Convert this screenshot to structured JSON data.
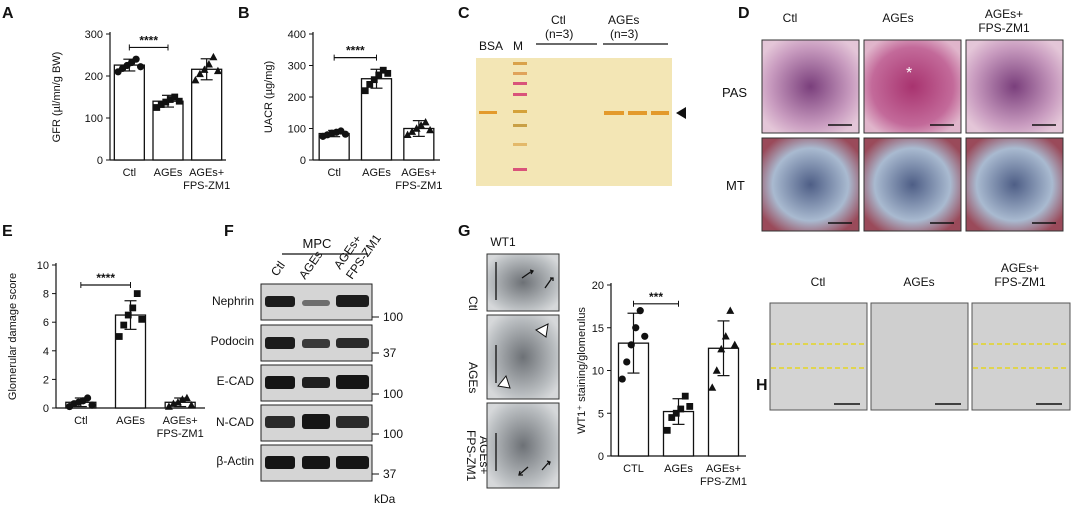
{
  "panels": {
    "A": {
      "letter": "A"
    },
    "B": {
      "letter": "B"
    },
    "C": {
      "letter": "C",
      "lanes": [
        "BSA",
        "M"
      ],
      "groups": [
        {
          "name": "Ctl",
          "n": "(n=3)"
        },
        {
          "name": "AGEs",
          "n": "(n=3)"
        }
      ]
    },
    "D": {
      "letter": "D",
      "cols": [
        "Ctl",
        "AGEs",
        "AGEs+",
        "FPS-ZM1"
      ],
      "rows": [
        "PAS",
        "MT"
      ]
    },
    "E": {
      "letter": "E"
    },
    "F": {
      "letter": "F",
      "group": "MPC",
      "lanes": [
        "Ctl",
        "AGEs",
        "AGEs+",
        "FPS-ZM1"
      ],
      "proteins": [
        "Nephrin",
        "Podocin",
        "E-CAD",
        "N-CAD",
        "β-Actin"
      ],
      "kda": [
        "100",
        "37",
        "100",
        "100",
        "37"
      ],
      "kda_unit": "kDa"
    },
    "G": {
      "letter": "G",
      "stain": "WT1",
      "rows": [
        "Ctl",
        "AGEs",
        "AGEs+",
        "FPS-ZM1"
      ]
    },
    "H": {
      "letter": "H",
      "cols": [
        "Ctl",
        "AGEs",
        "AGEs+",
        "FPS-ZM1"
      ]
    }
  },
  "chart_data": [
    {
      "id": "A",
      "type": "bar",
      "categories": [
        [
          "Ctl"
        ],
        [
          "AGEs"
        ],
        [
          "AGEs+",
          "FPS-ZM1"
        ]
      ],
      "values": [
        226,
        140,
        216
      ],
      "errors": [
        14,
        14,
        25
      ],
      "points": [
        [
          210,
          218,
          225,
          232,
          240,
          222
        ],
        [
          125,
          132,
          138,
          144,
          150,
          140
        ],
        [
          190,
          205,
          215,
          228,
          245,
          212
        ]
      ],
      "markers": [
        "circle",
        "square",
        "triangle"
      ],
      "ylabel": "GFR (µl/mn/g BW)",
      "ylim": [
        0,
        300
      ],
      "yticks": [
        "0",
        "100",
        "200",
        "300"
      ],
      "sig": {
        "from": 0,
        "to": 1,
        "label": "****",
        "y": 268
      }
    },
    {
      "id": "B",
      "type": "bar",
      "categories": [
        [
          "Ctl"
        ],
        [
          "AGEs"
        ],
        [
          "AGEs+",
          "FPS-ZM1"
        ]
      ],
      "values": [
        84,
        258,
        100
      ],
      "errors": [
        10,
        30,
        25
      ],
      "points": [
        [
          75,
          80,
          85,
          88,
          92,
          82
        ],
        [
          220,
          240,
          255,
          270,
          285,
          275
        ],
        [
          80,
          90,
          100,
          110,
          120,
          95
        ]
      ],
      "markers": [
        "circle",
        "square",
        "triangle"
      ],
      "ylabel": "UACR (µg/mg)",
      "ylim": [
        0,
        400
      ],
      "yticks": [
        "0",
        "100",
        "200",
        "300",
        "400"
      ],
      "sig": {
        "from": 0,
        "to": 1,
        "label": "****",
        "y": 325
      }
    },
    {
      "id": "E",
      "type": "bar",
      "categories": [
        [
          "Ctl"
        ],
        [
          "AGEs"
        ],
        [
          "AGEs+",
          "FPS-ZM1"
        ]
      ],
      "values": [
        0.4,
        6.5,
        0.4
      ],
      "errors": [
        0.3,
        1.0,
        0.3
      ],
      "points": [
        [
          0.1,
          0.3,
          0.4,
          0.5,
          0.7,
          0.2
        ],
        [
          5.0,
          5.8,
          6.5,
          7.0,
          8.0,
          6.2
        ],
        [
          0.1,
          0.3,
          0.4,
          0.6,
          0.7,
          0.2
        ]
      ],
      "markers": [
        "circle",
        "square",
        "triangle"
      ],
      "ylabel": "Glomerular damage score",
      "ylim": [
        0,
        10
      ],
      "yticks": [
        "0",
        "2",
        "4",
        "6",
        "8",
        "10"
      ],
      "sig": {
        "from": 0,
        "to": 1,
        "label": "****",
        "y": 8.6
      }
    },
    {
      "id": "G",
      "type": "bar",
      "categories": [
        [
          "CTL"
        ],
        [
          "AGEs"
        ],
        [
          "AGEs+",
          "FPS-ZM1"
        ]
      ],
      "values": [
        13.2,
        5.2,
        12.6
      ],
      "errors": [
        3.5,
        1.5,
        3.2
      ],
      "points": [
        [
          9,
          11,
          13,
          15,
          17,
          14
        ],
        [
          3,
          4.5,
          5,
          5.5,
          7,
          5.8
        ],
        [
          8,
          10,
          12.5,
          14,
          17,
          13
        ]
      ],
      "markers": [
        "circle",
        "square",
        "triangle"
      ],
      "ylabel": "WT1⁺ staining/glomerulus",
      "ylim": [
        0,
        20
      ],
      "yticks": [
        "0",
        "5",
        "10",
        "15",
        "20"
      ],
      "sig": {
        "from": 0,
        "to": 1,
        "label": "***",
        "y": 17.8
      }
    }
  ],
  "colors": {
    "bar_fill": "#ffffff",
    "stroke": "#111111",
    "gel_bg": "#f3e6b5",
    "gel_band": "#e39a2b",
    "marker_pink": "#d9537a",
    "dash_yellow": "#e8d600"
  }
}
